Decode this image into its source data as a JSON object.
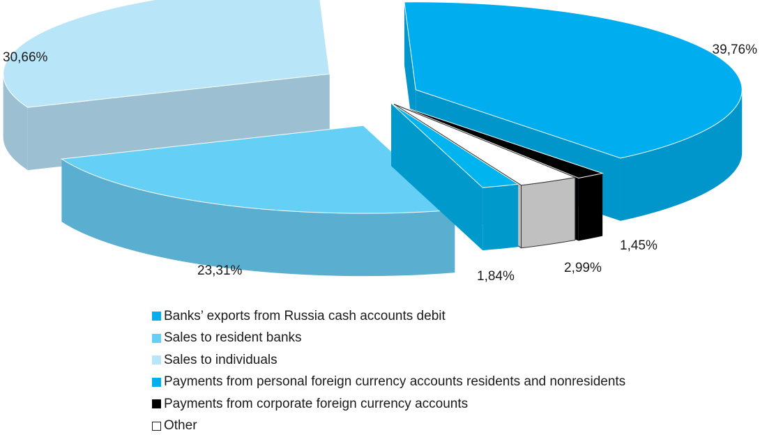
{
  "chart_data": {
    "type": "pie",
    "style": "3d-exploded",
    "slices": [
      {
        "label": "Banks’ exports from Russia cash accounts debit",
        "value": 39.76,
        "value_label": "39,76%",
        "color": "#00aeef",
        "side": "#0096cc"
      },
      {
        "label": "Payments from corporate foreign currency accounts",
        "value": 1.45,
        "value_label": "1,45%",
        "color": "#000000",
        "side": "#000000"
      },
      {
        "label": "Other",
        "value": 2.99,
        "value_label": "2,99%",
        "color": "#ffffff",
        "side": "#c0c0c0"
      },
      {
        "label": "Payments from personal foreign currency accounts  residents and nonresidents",
        "value": 1.84,
        "value_label": "1,84%",
        "color": "#00b4ef",
        "side": "#0099cc"
      },
      {
        "label": "Sales to resident banks",
        "value": 23.31,
        "value_label": "23,31%",
        "color": "#66cff5",
        "side": "#5aaed0"
      },
      {
        "label": "Sales to individuals",
        "value": 30.66,
        "value_label": "30,66%",
        "color": "#b9e5f8",
        "side": "#9dbfd2"
      }
    ],
    "legend": [
      {
        "label": "Banks’ exports from Russia cash accounts debit",
        "color": "#00aeef"
      },
      {
        "label": "Sales to resident banks",
        "color": "#66cff5"
      },
      {
        "label": "Sales to individuals",
        "color": "#b9e5f8"
      },
      {
        "label": "Payments from personal foreign currency accounts  residents and nonresidents",
        "color": "#00aeef"
      },
      {
        "label": "Payments from corporate foreign currency accounts",
        "color": "#000000"
      },
      {
        "label": "Other",
        "color": "#ffffff"
      }
    ],
    "legend_position": "bottom"
  }
}
